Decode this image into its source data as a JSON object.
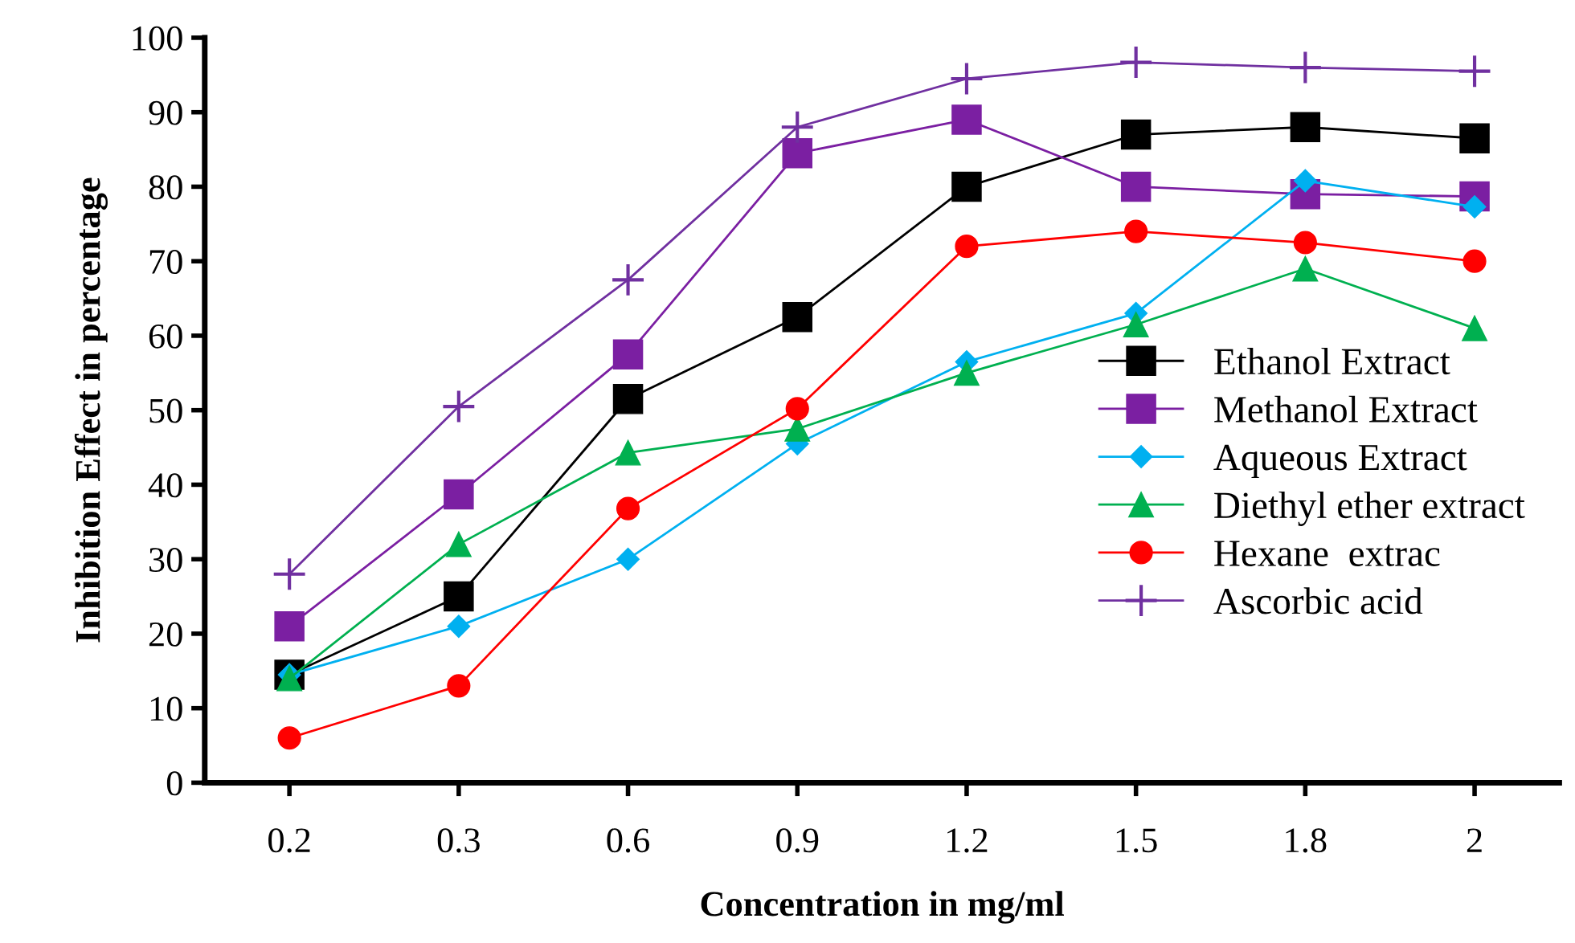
{
  "chart_data": {
    "type": "line",
    "xlabel": "Concentration in mg/ml",
    "ylabel": "Inhibition Effect in percentage",
    "categories": [
      "0.2",
      "0.3",
      "0.6",
      "0.9",
      "1.2",
      "1.5",
      "1.8",
      "2"
    ],
    "ylim": [
      0,
      100
    ],
    "yticks": [
      0,
      10,
      20,
      30,
      40,
      50,
      60,
      70,
      80,
      90,
      100
    ],
    "grid": false,
    "legend": "right",
    "series": [
      {
        "name": "Ethanol Extract",
        "color": "#000000",
        "marker": "square",
        "values": [
          14.5,
          25,
          51.5,
          62.5,
          80,
          87,
          88,
          86.5
        ]
      },
      {
        "name": "Methanol Extract",
        "color": "#7b1fa2",
        "marker": "square",
        "values": [
          21,
          38.7,
          57.5,
          84.5,
          89,
          80,
          79,
          78.7
        ]
      },
      {
        "name": "Aqueous Extract",
        "color": "#00b0f0",
        "marker": "diamond",
        "values": [
          14.5,
          21,
          30,
          45.5,
          56.5,
          63,
          80.8,
          77.3
        ]
      },
      {
        "name": "Diethyl ether extract",
        "color": "#00b050",
        "marker": "triangle",
        "values": [
          14,
          32,
          44.3,
          47.5,
          55,
          61.5,
          69,
          61
        ]
      },
      {
        "name": "Hexane  extrac",
        "color": "#ff0000",
        "marker": "circle",
        "values": [
          6,
          13,
          36.8,
          50.2,
          72,
          74,
          72.5,
          70
        ]
      },
      {
        "name": "Ascorbic acid",
        "color": "#7030a0",
        "marker": "cross",
        "values": [
          28,
          50.5,
          67.5,
          88,
          94.5,
          96.7,
          96,
          95.5
        ]
      }
    ]
  }
}
